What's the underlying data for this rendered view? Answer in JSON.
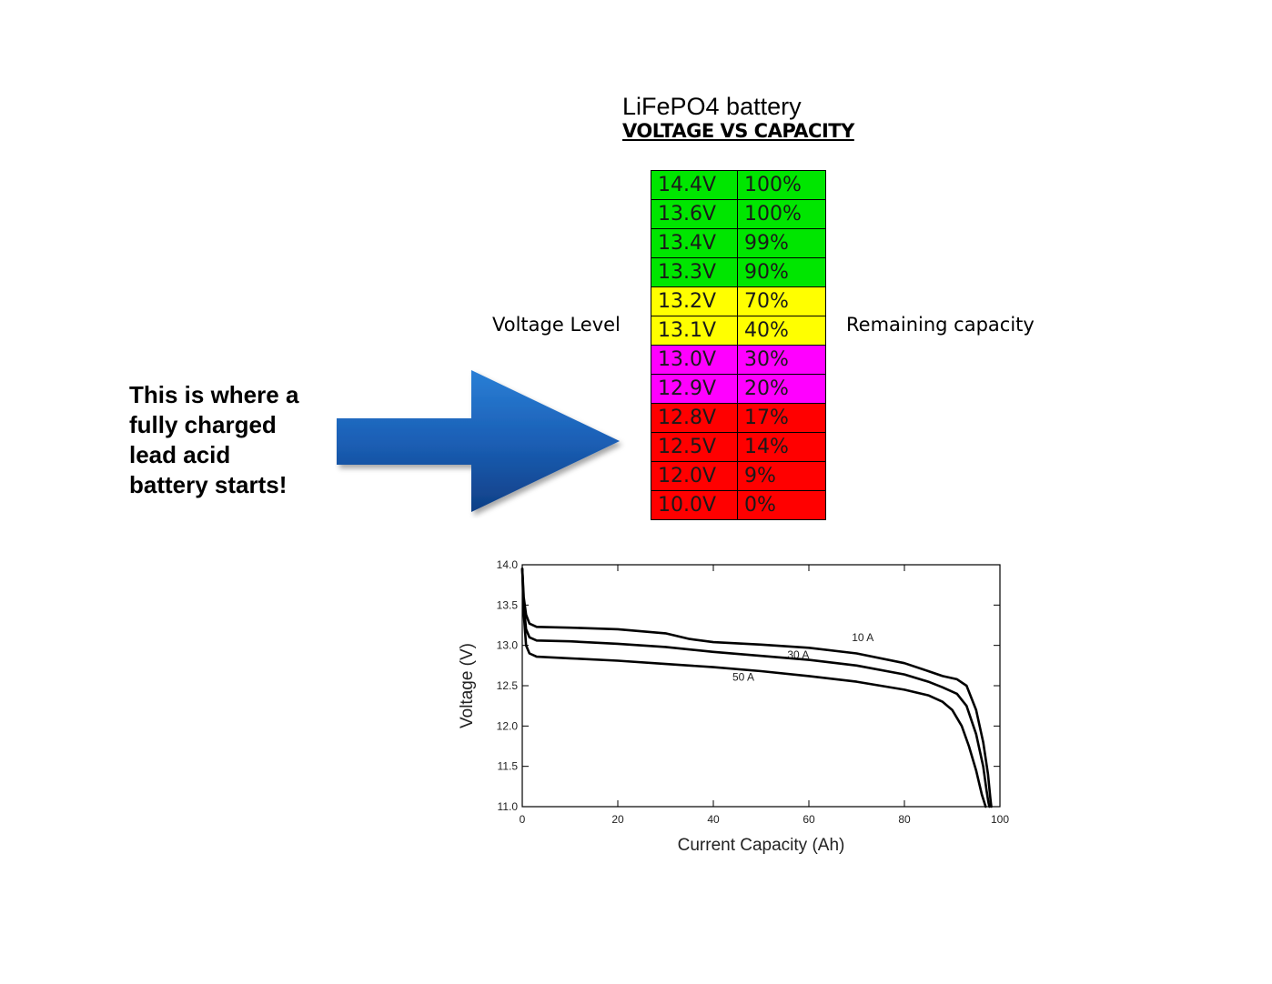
{
  "title": "LiFePO4 battery",
  "subtitle": "VOLTAGE VS CAPACITY",
  "left_label": "Voltage Level",
  "right_label": "Remaining capacity",
  "callout_lines": [
    "This is where a",
    "fully charged",
    "lead acid",
    "battery starts!"
  ],
  "colors": {
    "green": "#00e600",
    "yellow": "#ffff00",
    "magenta": "#ff00ff",
    "red": "#ff0000",
    "arrow": "#1a5cb0"
  },
  "table_rows": [
    {
      "voltage": "14.4V",
      "capacity": "100%",
      "color": "#00e600"
    },
    {
      "voltage": "13.6V",
      "capacity": "100%",
      "color": "#00e600"
    },
    {
      "voltage": "13.4V",
      "capacity": "99%",
      "color": "#00e600"
    },
    {
      "voltage": "13.3V",
      "capacity": "90%",
      "color": "#00e600"
    },
    {
      "voltage": "13.2V",
      "capacity": "70%",
      "color": "#ffff00"
    },
    {
      "voltage": "13.1V",
      "capacity": "40%",
      "color": "#ffff00"
    },
    {
      "voltage": "13.0V",
      "capacity": "30%",
      "color": "#ff00ff"
    },
    {
      "voltage": "12.9V",
      "capacity": "20%",
      "color": "#ff00ff"
    },
    {
      "voltage": "12.8V",
      "capacity": "17%",
      "color": "#ff0000"
    },
    {
      "voltage": "12.5V",
      "capacity": "14%",
      "color": "#ff0000"
    },
    {
      "voltage": "12.0V",
      "capacity": "9%",
      "color": "#ff0000"
    },
    {
      "voltage": "10.0V",
      "capacity": "0%",
      "color": "#ff0000"
    }
  ],
  "chart_data": {
    "type": "line",
    "xlabel": "Current Capacity (Ah)",
    "ylabel": "Voltage (V)",
    "xlim": [
      0,
      100
    ],
    "ylim": [
      11.0,
      14.0
    ],
    "xticks": [
      "0",
      "20",
      "40",
      "60",
      "80",
      "100"
    ],
    "yticks": [
      "11.0",
      "11.5",
      "12.0",
      "12.5",
      "13.0",
      "13.5",
      "14.0"
    ],
    "series": [
      {
        "name": "10 A",
        "x": [
          0,
          0.3,
          0.8,
          1.5,
          3,
          10,
          20,
          30,
          35,
          40,
          50,
          60,
          70,
          80,
          85,
          88,
          91,
          93,
          95,
          96.5,
          97.5,
          98,
          98.2
        ],
        "y": [
          13.95,
          13.6,
          13.38,
          13.27,
          13.23,
          13.22,
          13.2,
          13.15,
          13.08,
          13.04,
          13.01,
          12.97,
          12.9,
          12.78,
          12.68,
          12.62,
          12.58,
          12.5,
          12.2,
          11.8,
          11.4,
          11.1,
          11.0
        ]
      },
      {
        "name": "30 A",
        "x": [
          0,
          0.3,
          0.8,
          1.5,
          3,
          10,
          20,
          30,
          40,
          50,
          60,
          70,
          80,
          85,
          88,
          91,
          93,
          95,
          96.5,
          97.2,
          97.6,
          97.8
        ],
        "y": [
          13.95,
          13.5,
          13.2,
          13.1,
          13.06,
          13.05,
          13.02,
          12.98,
          12.92,
          12.87,
          12.82,
          12.75,
          12.64,
          12.55,
          12.48,
          12.4,
          12.25,
          11.9,
          11.5,
          11.2,
          11.05,
          11.0
        ]
      },
      {
        "name": "50 A",
        "x": [
          0,
          0.3,
          0.8,
          1.5,
          3,
          10,
          20,
          30,
          40,
          50,
          60,
          70,
          80,
          85,
          88,
          90,
          92,
          93.5,
          95,
          96.2,
          97
        ],
        "y": [
          13.95,
          13.4,
          13.0,
          12.9,
          12.86,
          12.84,
          12.81,
          12.77,
          12.73,
          12.68,
          12.62,
          12.55,
          12.45,
          12.38,
          12.3,
          12.2,
          12.0,
          11.75,
          11.45,
          11.15,
          11.0
        ]
      }
    ],
    "annotations": [
      {
        "text": "10 A",
        "x": 69,
        "y": 13.05
      },
      {
        "text": "30 A",
        "x": 55.5,
        "y": 12.84
      },
      {
        "text": "50 A",
        "x": 44,
        "y": 12.56
      }
    ],
    "grid": false
  }
}
